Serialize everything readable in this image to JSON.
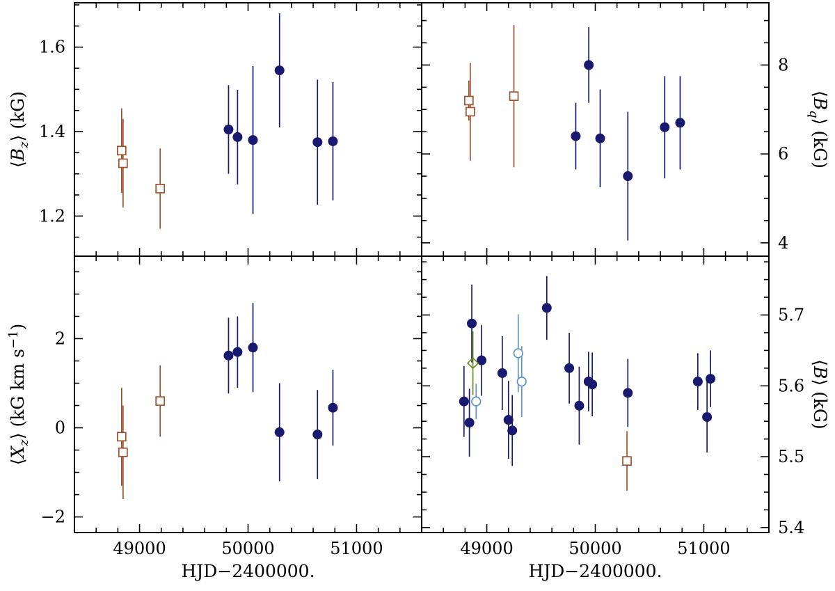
{
  "figure": {
    "xlabel": "HJD−2400000.",
    "background": "#ffffff",
    "frame_color": "#000000",
    "xlim": [
      48400,
      51600
    ],
    "x_minor_step": 200,
    "xticks": [
      {
        "v": 49000,
        "label": "49000"
      },
      {
        "v": 50000,
        "label": "50000"
      },
      {
        "v": 51000,
        "label": "51000"
      }
    ]
  },
  "colors": {
    "navy": "#191970",
    "brown": "#a0522d",
    "lightblue": "#5f94c8",
    "green": "#6b8e23"
  },
  "chart_data": [
    {
      "id": "Bz",
      "type": "scatter",
      "position": "top-left",
      "yaxis_side": "left",
      "ylabel": "⟨Bz⟩ (kG)",
      "ylabel_segments": [
        {
          "t": "⟨"
        },
        {
          "t": "B",
          "italic": true
        },
        {
          "t": "z",
          "italic": true,
          "sub": true
        },
        {
          "t": "⟩ (kG)"
        }
      ],
      "ylim": [
        1.105,
        1.705
      ],
      "y_minor_step": 0.05,
      "yticks": [
        {
          "v": 1.2,
          "label": "1.2"
        },
        {
          "v": 1.4,
          "label": "1.4"
        },
        {
          "v": 1.6,
          "label": "1.6"
        }
      ],
      "show_x_tick_labels": false,
      "series": [
        {
          "name": "open-squares",
          "marker": "open-square",
          "color": "brown",
          "points": [
            [
              48835,
              1.355,
              0.1
            ],
            [
              48848,
              1.325,
              0.105
            ],
            [
              49190,
              1.265,
              0.095
            ]
          ]
        },
        {
          "name": "filled-circles",
          "marker": "filled-circle",
          "color": "navy",
          "points": [
            [
              49820,
              1.405,
              0.105
            ],
            [
              49903,
              1.387,
              0.112
            ],
            [
              50045,
              1.38,
              0.175
            ],
            [
              50290,
              1.545,
              0.135
            ],
            [
              50640,
              1.375,
              0.148
            ],
            [
              50782,
              1.377,
              0.14
            ]
          ]
        }
      ]
    },
    {
      "id": "Bq",
      "type": "scatter",
      "position": "top-right",
      "yaxis_side": "right",
      "ylabel": "⟨Bq⟩ (kG)",
      "ylabel_segments": [
        {
          "t": "⟨"
        },
        {
          "t": "B",
          "italic": true
        },
        {
          "t": "q",
          "italic": true,
          "sub": true
        },
        {
          "t": "⟩ (kG)"
        }
      ],
      "ylim": [
        3.7,
        9.4
      ],
      "y_minor_step": 0.5,
      "yticks": [
        {
          "v": 4,
          "label": "4"
        },
        {
          "v": 6,
          "label": "6"
        },
        {
          "v": 8,
          "label": "8"
        }
      ],
      "show_x_tick_labels": false,
      "series": [
        {
          "name": "open-squares",
          "marker": "open-square",
          "color": "brown",
          "points": [
            [
              48835,
              7.2,
              0.45
            ],
            [
              48848,
              6.95,
              1.1
            ],
            [
              49250,
              7.3,
              1.6
            ]
          ]
        },
        {
          "name": "filled-circles",
          "marker": "filled-circle",
          "color": "navy",
          "points": [
            [
              49820,
              6.4,
              0.75
            ],
            [
              49940,
              8.0,
              0.85
            ],
            [
              50045,
              6.35,
              1.1
            ],
            [
              50300,
              5.5,
              1.45
            ],
            [
              50640,
              6.6,
              1.15
            ],
            [
              50782,
              6.7,
              1.05
            ]
          ]
        }
      ]
    },
    {
      "id": "Xz",
      "type": "scatter",
      "position": "bottom-left",
      "yaxis_side": "left",
      "ylabel": "⟨Xz⟩ (kG km s−1)",
      "ylabel_segments": [
        {
          "t": "⟨"
        },
        {
          "t": "X",
          "italic": true
        },
        {
          "t": "z",
          "italic": true,
          "sub": true
        },
        {
          "t": "⟩ (kG km s"
        },
        {
          "t": "−1",
          "sup": true
        },
        {
          "t": ")"
        }
      ],
      "ylim": [
        -2.35,
        3.85
      ],
      "y_minor_step": 0.5,
      "yticks": [
        {
          "v": -2,
          "label": "−2"
        },
        {
          "v": 0,
          "label": "0"
        },
        {
          "v": 2,
          "label": "2"
        }
      ],
      "show_x_tick_labels": true,
      "series": [
        {
          "name": "open-squares",
          "marker": "open-square",
          "color": "brown",
          "points": [
            [
              48835,
              -0.2,
              1.1
            ],
            [
              48848,
              -0.55,
              1.05
            ],
            [
              49190,
              0.6,
              0.8
            ]
          ]
        },
        {
          "name": "filled-circles",
          "marker": "filled-circle",
          "color": "navy",
          "points": [
            [
              49820,
              1.62,
              0.85
            ],
            [
              49903,
              1.7,
              0.8
            ],
            [
              50045,
              1.8,
              1.0
            ],
            [
              50290,
              -0.1,
              1.1
            ],
            [
              50640,
              -0.15,
              1.0
            ],
            [
              50782,
              0.45,
              0.85
            ]
          ]
        }
      ]
    },
    {
      "id": "B",
      "type": "scatter",
      "position": "bottom-right",
      "yaxis_side": "right",
      "ylabel": "⟨B⟩ (kG)",
      "ylabel_segments": [
        {
          "t": "⟨"
        },
        {
          "t": "B",
          "italic": true
        },
        {
          "t": "⟩ (kG)"
        }
      ],
      "ylim": [
        5.393,
        5.783
      ],
      "y_minor_step": 0.025,
      "yticks": [
        {
          "v": 5.4,
          "label": "5.4"
        },
        {
          "v": 5.5,
          "label": "5.5"
        },
        {
          "v": 5.6,
          "label": "5.6"
        },
        {
          "v": 5.7,
          "label": "5.7"
        }
      ],
      "show_x_tick_labels": true,
      "series": [
        {
          "name": "filled-circles",
          "marker": "filled-circle",
          "color": "navy",
          "points": [
            [
              48790,
              5.578,
              0.05
            ],
            [
              48840,
              5.548,
              0.048
            ],
            [
              48862,
              5.688,
              0.055
            ],
            [
              48952,
              5.636,
              0.05
            ],
            [
              49143,
              5.618,
              0.052
            ],
            [
              49200,
              5.552,
              0.055
            ],
            [
              49235,
              5.537,
              0.05
            ],
            [
              49553,
              5.71,
              0.045
            ],
            [
              49760,
              5.625,
              0.05
            ],
            [
              49852,
              5.572,
              0.055
            ],
            [
              49938,
              5.606,
              0.042
            ],
            [
              49972,
              5.602,
              0.045
            ],
            [
              50300,
              5.59,
              0.048
            ],
            [
              50945,
              5.606,
              0.04
            ],
            [
              51030,
              5.556,
              0.05
            ],
            [
              51062,
              5.61,
              0.04
            ]
          ]
        },
        {
          "name": "open-circles",
          "marker": "open-circle",
          "color": "lightblue",
          "points": [
            [
              48902,
              5.578,
              0.025
            ],
            [
              49290,
              5.646,
              0.055
            ],
            [
              49322,
              5.606,
              0.05
            ]
          ]
        },
        {
          "name": "open-diamonds",
          "marker": "open-diamond",
          "color": "green",
          "points": [
            [
              48872,
              5.632,
              0.045
            ]
          ]
        },
        {
          "name": "open-squares",
          "marker": "open-square",
          "color": "brown",
          "points": [
            [
              50292,
              5.494,
              0.042
            ]
          ]
        }
      ]
    }
  ]
}
